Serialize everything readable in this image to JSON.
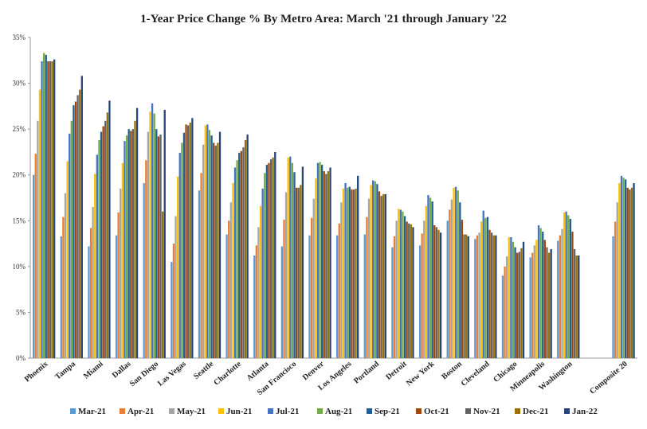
{
  "chart_data": {
    "type": "bar",
    "title": "1-Year Price Change % By Metro Area: March '21 through January '22",
    "xlabel": "",
    "ylabel": "",
    "ylim": [
      0,
      35
    ],
    "yticks": [
      "0%",
      "5%",
      "10%",
      "15%",
      "20%",
      "25%",
      "30%",
      "35%"
    ],
    "ytick_values": [
      0,
      5,
      10,
      15,
      20,
      25,
      30,
      35
    ],
    "grid": false,
    "legend_position": "bottom",
    "categories": [
      "Phoenix",
      "Tampa",
      "Miami",
      "Dallas",
      "San Diego",
      "Las Vegas",
      "Seattle",
      "Charlotte",
      "Atlanta",
      "San Francisco",
      "Denver",
      "Los Angeles",
      "Portland",
      "Detroit",
      "New York",
      "Boston",
      "Cleveland",
      "Chicago",
      "Minneapolis",
      "Washington",
      "",
      "Composite 20"
    ],
    "series": [
      {
        "name": "Mar-21",
        "color": "#5b9bd5",
        "values": [
          20.0,
          13.3,
          12.2,
          13.4,
          19.1,
          10.5,
          18.3,
          13.5,
          11.2,
          12.2,
          13.4,
          13.4,
          13.5,
          12.1,
          12.3,
          15.0,
          13.0,
          9.0,
          11.0,
          12.8,
          null,
          13.3
        ]
      },
      {
        "name": "Apr-21",
        "color": "#ed7d31",
        "values": [
          22.3,
          15.4,
          14.2,
          15.9,
          21.6,
          12.5,
          20.2,
          15.0,
          12.3,
          15.1,
          15.3,
          14.7,
          15.4,
          13.3,
          13.6,
          16.2,
          13.4,
          10.0,
          11.5,
          13.4,
          null,
          14.9
        ]
      },
      {
        "name": "May-21",
        "color": "#a5a5a5",
        "values": [
          25.9,
          18.0,
          16.5,
          18.5,
          24.7,
          15.5,
          23.3,
          17.0,
          14.3,
          18.1,
          17.4,
          17.0,
          17.4,
          15.0,
          15.0,
          17.3,
          13.7,
          11.1,
          12.3,
          14.1,
          null,
          17.0
        ]
      },
      {
        "name": "Jun-21",
        "color": "#ffc000",
        "values": [
          29.3,
          21.5,
          20.1,
          21.3,
          26.9,
          19.8,
          25.4,
          19.1,
          16.6,
          21.9,
          19.6,
          18.5,
          18.9,
          16.3,
          16.6,
          18.6,
          14.9,
          13.2,
          12.9,
          15.9,
          null,
          19.1
        ]
      },
      {
        "name": "Jul-21",
        "color": "#4472c4",
        "values": [
          32.4,
          24.5,
          22.2,
          23.7,
          27.8,
          22.4,
          25.5,
          20.8,
          18.5,
          22.0,
          21.3,
          19.1,
          19.4,
          16.2,
          17.8,
          18.7,
          16.1,
          13.2,
          14.5,
          16.0,
          null,
          19.9
        ]
      },
      {
        "name": "Aug-21",
        "color": "#70ad47",
        "values": [
          33.3,
          25.9,
          23.8,
          24.3,
          26.7,
          23.5,
          24.9,
          21.6,
          20.2,
          21.3,
          21.4,
          18.6,
          19.3,
          16.0,
          17.5,
          18.3,
          15.3,
          12.7,
          14.2,
          15.6,
          null,
          19.7
        ]
      },
      {
        "name": "Sep-21",
        "color": "#255e91",
        "values": [
          33.1,
          27.6,
          24.7,
          25.0,
          25.0,
          24.6,
          24.3,
          22.4,
          21.1,
          20.3,
          21.1,
          18.7,
          19.0,
          15.5,
          17.1,
          17.0,
          15.4,
          12.1,
          13.8,
          15.2,
          null,
          19.5
        ]
      },
      {
        "name": "Oct-21",
        "color": "#9e480e",
        "values": [
          32.4,
          28.0,
          25.3,
          24.8,
          24.2,
          25.5,
          23.5,
          22.6,
          21.3,
          18.6,
          20.4,
          18.4,
          18.2,
          14.9,
          14.5,
          15.1,
          14.0,
          11.5,
          12.9,
          13.8,
          null,
          18.6
        ]
      },
      {
        "name": "Nov-21",
        "color": "#636363",
        "values": [
          32.4,
          28.7,
          25.9,
          25.0,
          24.4,
          25.4,
          23.2,
          23.0,
          21.7,
          18.6,
          20.1,
          18.4,
          17.7,
          14.7,
          14.3,
          13.5,
          13.7,
          11.6,
          12.1,
          11.9,
          null,
          18.4
        ]
      },
      {
        "name": "Dec-21",
        "color": "#997300",
        "values": [
          32.4,
          29.3,
          26.8,
          25.9,
          16.0,
          25.7,
          23.5,
          23.8,
          21.9,
          18.9,
          20.4,
          18.5,
          17.9,
          14.6,
          14.0,
          13.5,
          13.4,
          12.0,
          11.5,
          11.2,
          null,
          18.6
        ]
      },
      {
        "name": "Jan-22",
        "color": "#264478",
        "values": [
          32.6,
          30.8,
          28.1,
          27.3,
          27.1,
          26.2,
          24.7,
          24.4,
          22.5,
          20.9,
          20.8,
          19.9,
          17.9,
          14.3,
          13.7,
          13.3,
          13.4,
          12.7,
          11.9,
          11.2,
          null,
          19.1
        ]
      }
    ]
  }
}
